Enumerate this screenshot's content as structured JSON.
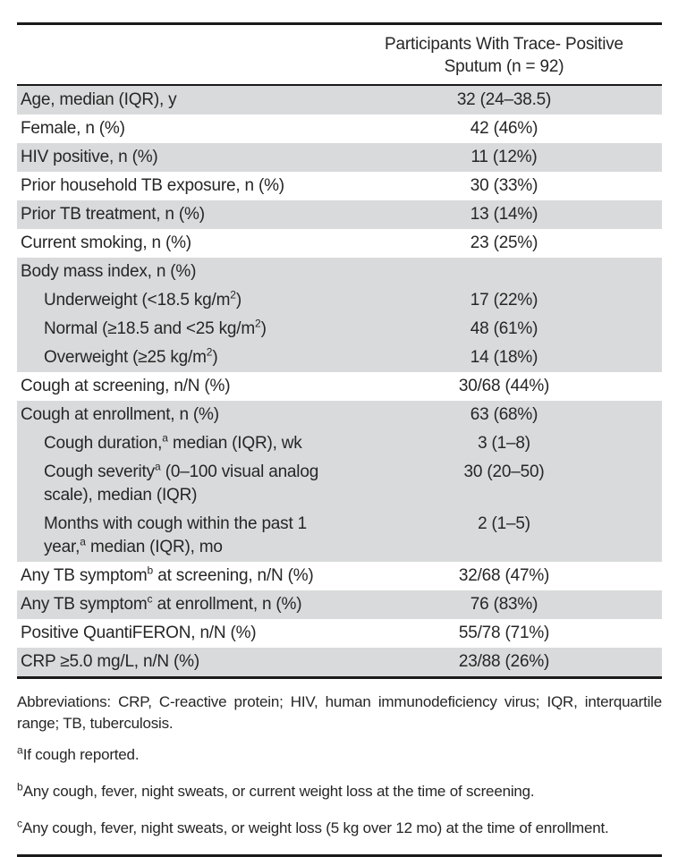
{
  "colors": {
    "row_shade": "#d9dadb",
    "rule": "#1a1a1a",
    "text": "#262626"
  },
  "table": {
    "header": {
      "line1": "Participants With Trace- Positive",
      "line2": "Sputum (n = 92)"
    },
    "rows": [
      {
        "label_parts": [
          "Age, median (IQR), y"
        ],
        "value": "32 (24–38.5)",
        "shade": true,
        "indent": false
      },
      {
        "label_parts": [
          "Female, n (%)"
        ],
        "value": "42 (46%)",
        "shade": false,
        "indent": false
      },
      {
        "label_parts": [
          "HIV positive, n (%)"
        ],
        "value": "11 (12%)",
        "shade": true,
        "indent": false
      },
      {
        "label_parts": [
          "Prior household TB exposure, n (%)"
        ],
        "value": "30 (33%)",
        "shade": false,
        "indent": false
      },
      {
        "label_parts": [
          "Prior TB treatment, n (%)"
        ],
        "value": "13 (14%)",
        "shade": true,
        "indent": false
      },
      {
        "label_parts": [
          "Current smoking, n (%)"
        ],
        "value": "23 (25%)",
        "shade": false,
        "indent": false
      },
      {
        "label_parts": [
          "Body mass index, n (%)"
        ],
        "value": "",
        "shade": true,
        "indent": false
      },
      {
        "label_parts": [
          "Underweight (<18.5 kg/m",
          {
            "sup": "2"
          },
          ")"
        ],
        "value": "17 (22%)",
        "shade": true,
        "indent": true
      },
      {
        "label_parts": [
          "Normal (≥18.5 and <25 kg/m",
          {
            "sup": "2"
          },
          ")"
        ],
        "value": "48 (61%)",
        "shade": true,
        "indent": true
      },
      {
        "label_parts": [
          "Overweight (≥25 kg/m",
          {
            "sup": "2"
          },
          ")"
        ],
        "value": "14 (18%)",
        "shade": true,
        "indent": true
      },
      {
        "label_parts": [
          "Cough at screening, n/N (%)"
        ],
        "value": "30/68 (44%)",
        "shade": false,
        "indent": false
      },
      {
        "label_parts": [
          "Cough at enrollment, n (%)"
        ],
        "value": "63 (68%)",
        "shade": true,
        "indent": false
      },
      {
        "label_parts": [
          "Cough duration,",
          {
            "sup": "a"
          },
          " median (IQR), wk"
        ],
        "value": "3 (1–8)",
        "shade": true,
        "indent": true
      },
      {
        "label_parts": [
          "Cough severity",
          {
            "sup": "a"
          },
          " (0–100 visual analog scale), median (IQR)"
        ],
        "value": "30 (20–50)",
        "shade": true,
        "indent": true
      },
      {
        "label_parts": [
          "Months with cough within the past 1 year,",
          {
            "sup": "a"
          },
          " median (IQR), mo"
        ],
        "value": "2 (1–5)",
        "shade": true,
        "indent": true
      },
      {
        "label_parts": [
          "Any TB symptom",
          {
            "sup": "b"
          },
          " at screening, n/N (%)"
        ],
        "value": "32/68 (47%)",
        "shade": false,
        "indent": false
      },
      {
        "label_parts": [
          "Any TB symptom",
          {
            "sup": "c"
          },
          " at enrollment, n (%)"
        ],
        "value": "76 (83%)",
        "shade": true,
        "indent": false
      },
      {
        "label_parts": [
          "Positive QuantiFERON, n/N (%)"
        ],
        "value": "55/78 (71%)",
        "shade": false,
        "indent": false
      },
      {
        "label_parts": [
          "CRP ≥5.0 mg/L, n/N (%)"
        ],
        "value": "23/88 (26%)",
        "shade": true,
        "indent": false
      }
    ]
  },
  "footnotes": {
    "abbreviations": "Abbreviations: CRP, C-reactive protein; HIV, human immunodeficiency virus; IQR, interquartile range; TB, tuberculosis.",
    "items": [
      {
        "marker": "a",
        "text": "If cough reported."
      },
      {
        "marker": "b",
        "text": "Any cough, fever, night sweats, or current weight loss at the time of screening."
      },
      {
        "marker": "c",
        "text": "Any cough, fever, night sweats, or weight loss (5 kg over 12 mo) at the time of enrollment."
      }
    ]
  }
}
